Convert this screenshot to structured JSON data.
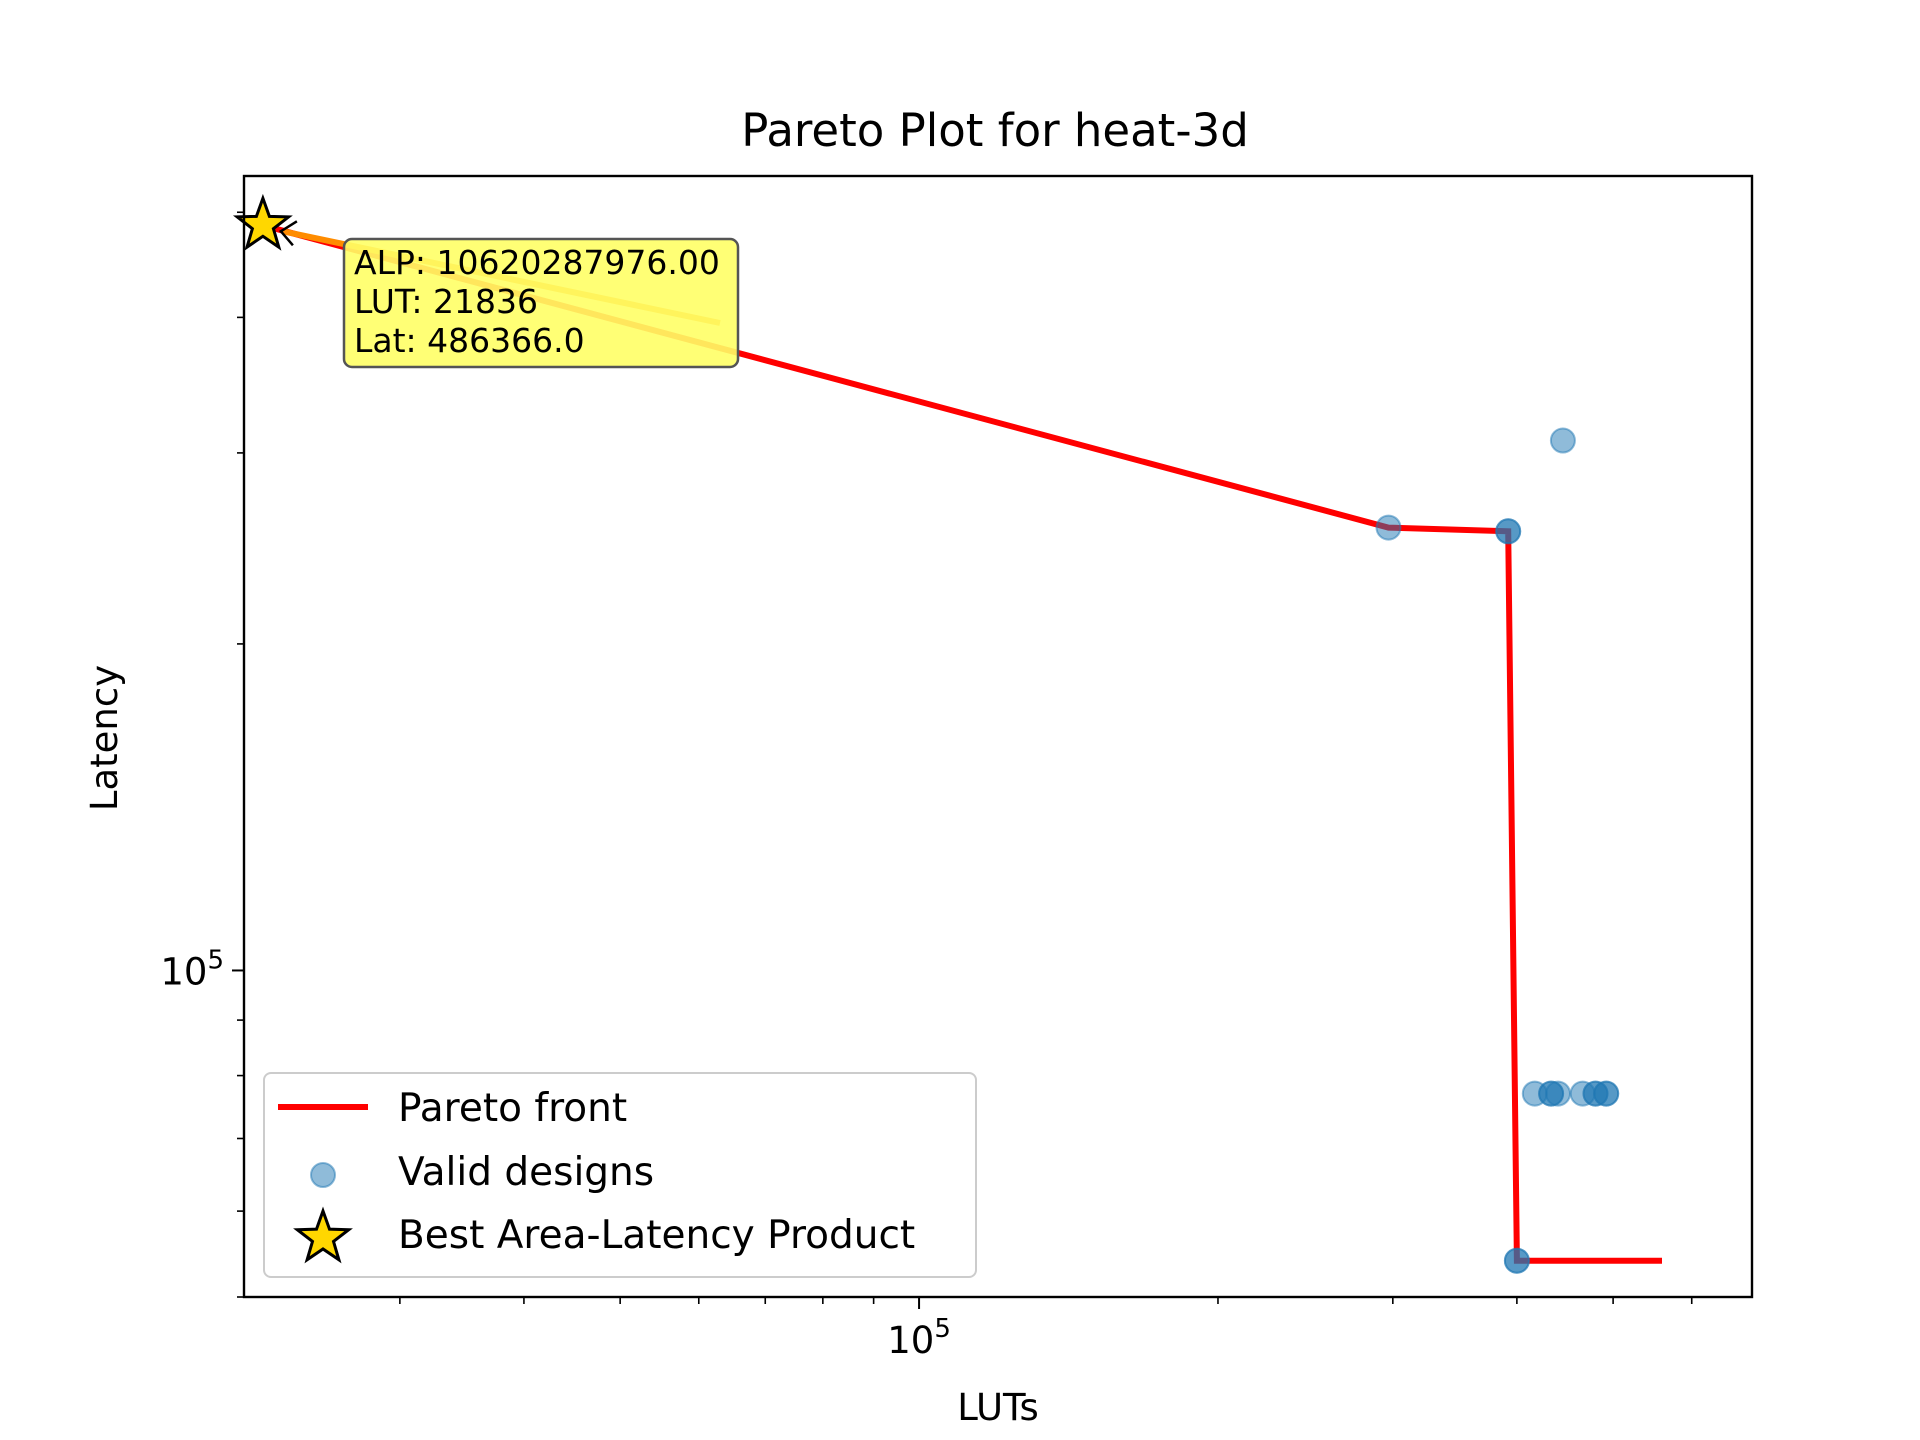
{
  "chart_data": {
    "type": "scatter",
    "title": "Pareto Plot for heat-3d",
    "xlabel": "LUTs",
    "ylabel": "Latency",
    "xscale": "log",
    "yscale": "log",
    "xlim": [
      20900,
      690000
    ],
    "ylim": [
      50000,
      540000
    ],
    "x_ticks": [
      {
        "value": 100000,
        "base": "10",
        "exp": "5"
      }
    ],
    "y_ticks": [
      {
        "value": 100000,
        "base": "10",
        "exp": "5"
      }
    ],
    "grid": false,
    "legend_position": "lower-left",
    "colors": {
      "pareto": "#ff0000",
      "points": "#1f77b4",
      "star": "#ffd700",
      "annotation_bg": "#ffff66",
      "arrow": "#ff8c00"
    },
    "series": [
      {
        "name": "Pareto front",
        "kind": "line",
        "x": [
          21836,
          297000,
          392000,
          400000,
          400000,
          560000
        ],
        "y": [
          486366,
          256000,
          254000,
          54000,
          54000,
          54000
        ]
      },
      {
        "name": "Valid designs",
        "kind": "scatter",
        "x": [
          297000,
          392000,
          392000,
          400000,
          400000,
          417000,
          433000,
          433000,
          440000,
          466000,
          480000,
          480000,
          492000,
          492000,
          445000
        ],
        "y": [
          256000,
          254000,
          254000,
          54000,
          54000,
          77000,
          77000,
          77000,
          77000,
          77000,
          77000,
          77000,
          77000,
          77000,
          308000
        ]
      },
      {
        "name": "Best Area-Latency Product",
        "kind": "star",
        "x": [
          21836
        ],
        "y": [
          486366
        ]
      }
    ],
    "annotation": {
      "lines": [
        "ALP: 10620287976.00",
        "LUT: 21836",
        "Lat: 486366.0"
      ]
    }
  }
}
